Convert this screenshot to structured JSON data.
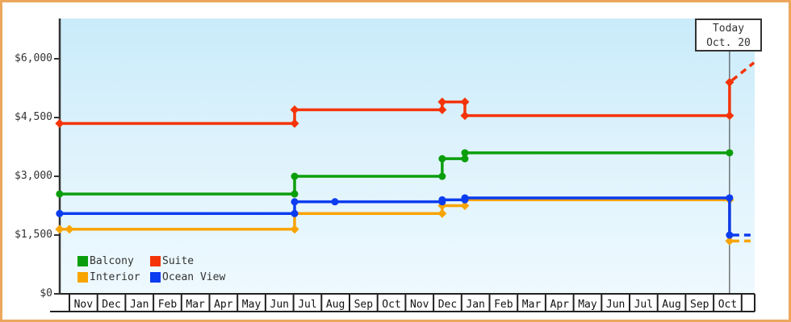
{
  "today_box": {
    "line1": "Today",
    "line2": "Oct. 20"
  },
  "colors": {
    "frame_border": "#eda75d",
    "axis": "#333333",
    "month_band_border": "#222222",
    "plot_bg_top": "#c9ebfa",
    "plot_bg_bottom": "#eef9fe",
    "balcony": "#0b9e0b",
    "suite": "#f43408",
    "interior": "#f8a402",
    "ocean_view": "#0c3cf0"
  },
  "legend": {
    "position": "bottom-left",
    "items": [
      {
        "label": "Balcony",
        "color": "#0b9e0b",
        "marker": "square"
      },
      {
        "label": "Suite",
        "color": "#f43408",
        "marker": "square"
      },
      {
        "label": "Interior",
        "color": "#f8a402",
        "marker": "square"
      },
      {
        "label": "Ocean View",
        "color": "#0c3cf0",
        "marker": "square"
      }
    ]
  },
  "chart_data": {
    "type": "line",
    "title": "",
    "xlabel": "",
    "ylabel": "",
    "grid": false,
    "ylim": [
      0,
      6500
    ],
    "y_ticks": [
      {
        "value": 0,
        "label": "$0"
      },
      {
        "value": 1500,
        "label": "$1,500"
      },
      {
        "value": 3000,
        "label": "$3,000"
      },
      {
        "value": 4500,
        "label": "$4,500"
      },
      {
        "value": 6000,
        "label": "$6,000"
      }
    ],
    "x_months": [
      "Nov",
      "Dec",
      "Jan",
      "Feb",
      "Mar",
      "Apr",
      "May",
      "Jun",
      "Jul",
      "Aug",
      "Sep",
      "Oct",
      "Nov",
      "Dec",
      "Jan",
      "Feb",
      "Mar",
      "Apr",
      "May",
      "Jun",
      "Jul",
      "Aug",
      "Sep",
      "Oct"
    ],
    "today": {
      "t": 23.57,
      "label": "Oct. 20"
    },
    "series": [
      {
        "name": "Balcony",
        "color": "#0b9e0b",
        "marker": "circle",
        "points": [
          {
            "t": -0.35,
            "v": 2549
          },
          {
            "t": 8.04,
            "v": 2549
          },
          {
            "t": 8.04,
            "v": 2999
          },
          {
            "t": 13.31,
            "v": 2999
          },
          {
            "t": 13.31,
            "v": 3449
          },
          {
            "t": 14.12,
            "v": 3449
          },
          {
            "t": 14.12,
            "v": 3599
          },
          {
            "t": 23.57,
            "v": 3599
          }
        ]
      },
      {
        "name": "Suite",
        "color": "#f43408",
        "marker": "diamond",
        "points": [
          {
            "t": -0.35,
            "v": 4349
          },
          {
            "t": 8.04,
            "v": 4349
          },
          {
            "t": 8.04,
            "v": 4699
          },
          {
            "t": 13.31,
            "v": 4699
          },
          {
            "t": 13.31,
            "v": 4899
          },
          {
            "t": 14.12,
            "v": 4899
          },
          {
            "t": 14.12,
            "v": 4549
          },
          {
            "t": 23.57,
            "v": 4549
          },
          {
            "t": 23.57,
            "v": 5399
          }
        ],
        "forecast": [
          {
            "t": 23.57,
            "v": 5399
          },
          {
            "t": 24.44,
            "v": 5899
          }
        ]
      },
      {
        "name": "Interior",
        "color": "#f8a402",
        "marker": "diamond",
        "points": [
          {
            "t": -0.35,
            "v": 1649
          },
          {
            "t": 0.0,
            "v": 1649
          },
          {
            "t": 8.04,
            "v": 1649
          },
          {
            "t": 8.04,
            "v": 2049
          },
          {
            "t": 13.31,
            "v": 2049
          },
          {
            "t": 13.31,
            "v": 2249
          },
          {
            "t": 14.12,
            "v": 2249
          },
          {
            "t": 14.12,
            "v": 2399
          },
          {
            "t": 23.57,
            "v": 2399
          },
          {
            "t": 23.57,
            "v": 1349
          }
        ],
        "forecast": [
          {
            "t": 23.57,
            "v": 1349
          },
          {
            "t": 24.4,
            "v": 1349
          }
        ]
      },
      {
        "name": "Ocean View",
        "color": "#0c3cf0",
        "marker": "circle",
        "points": [
          {
            "t": -0.35,
            "v": 2049
          },
          {
            "t": 8.04,
            "v": 2049
          },
          {
            "t": 8.04,
            "v": 2349
          },
          {
            "t": 9.48,
            "v": 2349
          },
          {
            "t": 13.31,
            "v": 2349
          },
          {
            "t": 13.31,
            "v": 2399
          },
          {
            "t": 14.12,
            "v": 2399
          },
          {
            "t": 14.12,
            "v": 2449
          },
          {
            "t": 23.57,
            "v": 2449
          },
          {
            "t": 23.57,
            "v": 1499
          }
        ],
        "forecast": [
          {
            "t": 23.57,
            "v": 1499
          },
          {
            "t": 24.4,
            "v": 1499
          }
        ]
      }
    ]
  }
}
